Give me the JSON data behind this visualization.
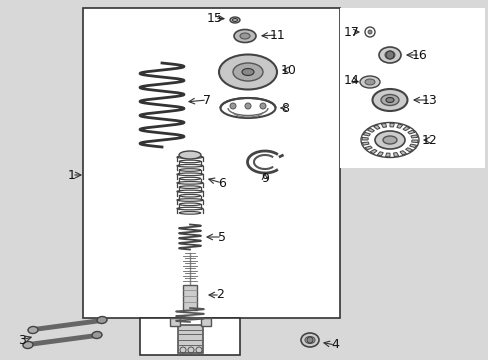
{
  "bg_color": "#d8d8d8",
  "box_color": "#c8c8c8",
  "line_color": "#333333",
  "text_color": "#222222",
  "part_color": "#444444",
  "part_fill": "#bbbbbb"
}
